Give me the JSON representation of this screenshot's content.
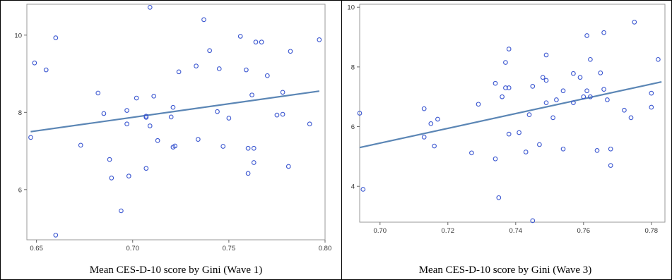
{
  "chart_data": [
    {
      "type": "scatter",
      "title": "",
      "caption": "Mean CES-D-10 score by Gini (Wave 1)",
      "xlabel": "",
      "ylabel": "",
      "xlim": [
        0.645,
        0.8
      ],
      "ylim": [
        4.7,
        10.8
      ],
      "x_ticks": [
        0.65,
        0.7,
        0.75,
        0.8
      ],
      "x_tick_labels": [
        "0.65",
        "0.70",
        "0.75",
        "0.80"
      ],
      "y_ticks": [
        6,
        8,
        10
      ],
      "y_tick_labels": [
        "6",
        "8",
        "10"
      ],
      "grid": false,
      "point_color": "#3a56d0",
      "line_color": "#5b86b5",
      "fit_line": {
        "x": [
          0.647,
          0.797
        ],
        "y": [
          7.5,
          8.55
        ]
      },
      "points": [
        {
          "x": 0.647,
          "y": 7.35
        },
        {
          "x": 0.649,
          "y": 9.28
        },
        {
          "x": 0.655,
          "y": 9.1
        },
        {
          "x": 0.66,
          "y": 9.93
        },
        {
          "x": 0.66,
          "y": 4.82
        },
        {
          "x": 0.673,
          "y": 7.15
        },
        {
          "x": 0.682,
          "y": 8.5
        },
        {
          "x": 0.685,
          "y": 7.97
        },
        {
          "x": 0.688,
          "y": 6.78
        },
        {
          "x": 0.689,
          "y": 6.3
        },
        {
          "x": 0.694,
          "y": 5.45
        },
        {
          "x": 0.697,
          "y": 7.7
        },
        {
          "x": 0.697,
          "y": 8.05
        },
        {
          "x": 0.698,
          "y": 6.35
        },
        {
          "x": 0.702,
          "y": 8.37
        },
        {
          "x": 0.707,
          "y": 7.87
        },
        {
          "x": 0.707,
          "y": 6.55
        },
        {
          "x": 0.707,
          "y": 7.9
        },
        {
          "x": 0.709,
          "y": 10.72
        },
        {
          "x": 0.709,
          "y": 7.65
        },
        {
          "x": 0.711,
          "y": 8.42
        },
        {
          "x": 0.713,
          "y": 7.27
        },
        {
          "x": 0.72,
          "y": 7.88
        },
        {
          "x": 0.721,
          "y": 8.13
        },
        {
          "x": 0.721,
          "y": 7.1
        },
        {
          "x": 0.722,
          "y": 7.13
        },
        {
          "x": 0.724,
          "y": 9.05
        },
        {
          "x": 0.733,
          "y": 9.2
        },
        {
          "x": 0.734,
          "y": 7.3
        },
        {
          "x": 0.737,
          "y": 10.4
        },
        {
          "x": 0.74,
          "y": 9.6
        },
        {
          "x": 0.744,
          "y": 8.02
        },
        {
          "x": 0.745,
          "y": 9.13
        },
        {
          "x": 0.747,
          "y": 7.12
        },
        {
          "x": 0.75,
          "y": 7.85
        },
        {
          "x": 0.756,
          "y": 9.97
        },
        {
          "x": 0.759,
          "y": 9.1
        },
        {
          "x": 0.76,
          "y": 7.07
        },
        {
          "x": 0.76,
          "y": 6.42
        },
        {
          "x": 0.762,
          "y": 8.45
        },
        {
          "x": 0.763,
          "y": 7.07
        },
        {
          "x": 0.763,
          "y": 6.7
        },
        {
          "x": 0.764,
          "y": 9.82
        },
        {
          "x": 0.767,
          "y": 9.82
        },
        {
          "x": 0.77,
          "y": 8.95
        },
        {
          "x": 0.775,
          "y": 7.93
        },
        {
          "x": 0.778,
          "y": 8.52
        },
        {
          "x": 0.778,
          "y": 7.95
        },
        {
          "x": 0.781,
          "y": 6.6
        },
        {
          "x": 0.782,
          "y": 9.58
        },
        {
          "x": 0.792,
          "y": 7.7
        },
        {
          "x": 0.797,
          "y": 9.88
        }
      ]
    },
    {
      "type": "scatter",
      "title": "",
      "caption": "Mean CES-D-10 score by Gini (Wave 3)",
      "xlabel": "",
      "ylabel": "",
      "xlim": [
        0.694,
        0.784
      ],
      "ylim": [
        2.8,
        10.1
      ],
      "x_ticks": [
        0.7,
        0.72,
        0.74,
        0.76,
        0.78
      ],
      "x_tick_labels": [
        "0.70",
        "0.72",
        "0.74",
        "0.76",
        "0.78"
      ],
      "y_ticks": [
        4,
        6,
        8,
        10
      ],
      "y_tick_labels": [
        "4",
        "6",
        "8",
        "10"
      ],
      "grid": false,
      "point_color": "#3a56d0",
      "line_color": "#5b86b5",
      "fit_line": {
        "x": [
          0.694,
          0.783
        ],
        "y": [
          5.3,
          7.5
        ]
      },
      "points": [
        {
          "x": 0.694,
          "y": 6.45
        },
        {
          "x": 0.695,
          "y": 3.9
        },
        {
          "x": 0.713,
          "y": 6.6
        },
        {
          "x": 0.713,
          "y": 5.65
        },
        {
          "x": 0.715,
          "y": 6.1
        },
        {
          "x": 0.716,
          "y": 5.35
        },
        {
          "x": 0.717,
          "y": 6.25
        },
        {
          "x": 0.727,
          "y": 5.12
        },
        {
          "x": 0.729,
          "y": 6.75
        },
        {
          "x": 0.734,
          "y": 7.45
        },
        {
          "x": 0.734,
          "y": 4.92
        },
        {
          "x": 0.735,
          "y": 3.62
        },
        {
          "x": 0.736,
          "y": 7.0
        },
        {
          "x": 0.737,
          "y": 7.3
        },
        {
          "x": 0.737,
          "y": 8.15
        },
        {
          "x": 0.738,
          "y": 8.6
        },
        {
          "x": 0.738,
          "y": 7.3
        },
        {
          "x": 0.738,
          "y": 5.75
        },
        {
          "x": 0.741,
          "y": 5.8
        },
        {
          "x": 0.743,
          "y": 5.15
        },
        {
          "x": 0.744,
          "y": 6.4
        },
        {
          "x": 0.745,
          "y": 7.35
        },
        {
          "x": 0.745,
          "y": 2.85
        },
        {
          "x": 0.747,
          "y": 5.4
        },
        {
          "x": 0.748,
          "y": 7.65
        },
        {
          "x": 0.749,
          "y": 6.8
        },
        {
          "x": 0.749,
          "y": 8.4
        },
        {
          "x": 0.749,
          "y": 7.55
        },
        {
          "x": 0.751,
          "y": 6.3
        },
        {
          "x": 0.752,
          "y": 6.9
        },
        {
          "x": 0.754,
          "y": 7.2
        },
        {
          "x": 0.754,
          "y": 5.25
        },
        {
          "x": 0.757,
          "y": 6.8
        },
        {
          "x": 0.757,
          "y": 7.78
        },
        {
          "x": 0.759,
          "y": 7.65
        },
        {
          "x": 0.76,
          "y": 7.0
        },
        {
          "x": 0.761,
          "y": 7.2
        },
        {
          "x": 0.761,
          "y": 9.05
        },
        {
          "x": 0.762,
          "y": 8.25
        },
        {
          "x": 0.762,
          "y": 7.0
        },
        {
          "x": 0.764,
          "y": 5.2
        },
        {
          "x": 0.765,
          "y": 7.8
        },
        {
          "x": 0.766,
          "y": 9.15
        },
        {
          "x": 0.766,
          "y": 7.25
        },
        {
          "x": 0.767,
          "y": 6.9
        },
        {
          "x": 0.768,
          "y": 5.25
        },
        {
          "x": 0.768,
          "y": 4.7
        },
        {
          "x": 0.772,
          "y": 6.55
        },
        {
          "x": 0.774,
          "y": 6.3
        },
        {
          "x": 0.775,
          "y": 9.5
        },
        {
          "x": 0.78,
          "y": 7.12
        },
        {
          "x": 0.78,
          "y": 6.65
        },
        {
          "x": 0.782,
          "y": 8.25
        }
      ]
    }
  ]
}
